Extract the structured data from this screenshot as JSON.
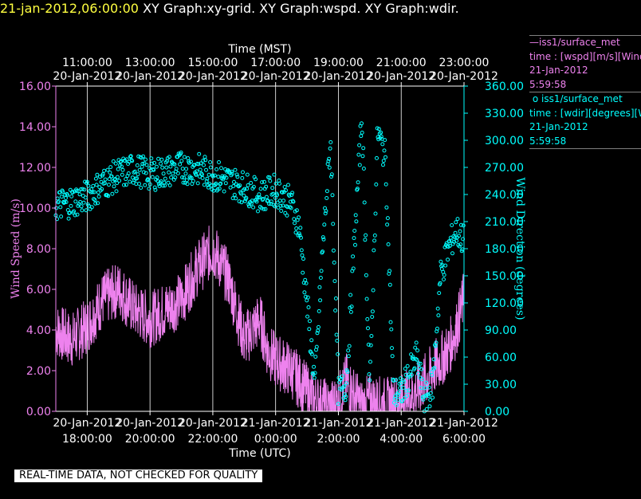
{
  "header": {
    "timestamp": "21-jan-2012,06:00:00",
    "graphs": [
      "XY Graph:xy-grid.",
      "XY Graph:wspd.",
      "XY Graph:wdir."
    ]
  },
  "legend": {
    "wspd": {
      "symbol": "—",
      "platform": "iss1/surface_met",
      "variable": "time : [wspd][m/s][Wind",
      "date": "21-Jan-2012",
      "time": "5:59:58",
      "color": "#ee82ee"
    },
    "wdir": {
      "symbol": "o",
      "platform": "iss1/surface_met",
      "variable": "time : [wdir][degrees][W",
      "date": "21-Jan-2012",
      "time": "5:59:58",
      "color": "#00ffff"
    }
  },
  "banner": "REAL-TIME DATA, NOT CHECKED FOR QUALITY",
  "chart_data": {
    "type": "line",
    "top_axis": {
      "label": "Time (MST)",
      "ticks": [
        {
          "time": "11:00:00",
          "date": "20-Jan-2012"
        },
        {
          "time": "13:00:00",
          "date": "20-Jan-2012"
        },
        {
          "time": "15:00:00",
          "date": "20-Jan-2012"
        },
        {
          "time": "17:00:00",
          "date": "20-Jan-2012"
        },
        {
          "time": "19:00:00",
          "date": "20-Jan-2012"
        },
        {
          "time": "21:00:00",
          "date": "20-Jan-2012"
        },
        {
          "time": "23:00:00",
          "date": "20-Jan-2012"
        }
      ]
    },
    "bottom_axis": {
      "label": "Time (UTC)",
      "range": [
        "20-Jan-2012 17:00",
        "21-Jan-2012 06:00"
      ],
      "ticks": [
        {
          "date": "20-Jan-2012",
          "time": "18:00:00",
          "utc": "2012-01-20 18:00"
        },
        {
          "date": "20-Jan-2012",
          "time": "20:00:00",
          "utc": "2012-01-20 20:00"
        },
        {
          "date": "20-Jan-2012",
          "time": "22:00:00",
          "utc": "2012-01-20 22:00"
        },
        {
          "date": "21-Jan-2012",
          "time": "0:00:00",
          "utc": "2012-01-21 00:00"
        },
        {
          "date": "21-Jan-2012",
          "time": "2:00:00",
          "utc": "2012-01-21 02:00"
        },
        {
          "date": "21-Jan-2012",
          "time": "4:00:00",
          "utc": "2012-01-21 04:00"
        },
        {
          "date": "21-Jan-2012",
          "time": "6:00:00",
          "utc": "2012-01-21 06:00"
        }
      ]
    },
    "y_left": {
      "label": "Wind Speed (m/s)",
      "range": [
        0,
        16
      ],
      "ticks": [
        "0.00",
        "2.00",
        "4.00",
        "6.00",
        "8.00",
        "10.00",
        "12.00",
        "14.00",
        "16.00"
      ]
    },
    "y_right": {
      "label": "Wind Direction (degrees)",
      "range": [
        0,
        360
      ],
      "ticks": [
        "0.00",
        "30.00",
        "60.00",
        "90.00",
        "120.00",
        "150.00",
        "180.00",
        "210.00",
        "240.00",
        "270.00",
        "300.00",
        "330.00",
        "360.00"
      ]
    },
    "grid": "vertical at bottom-axis ticks",
    "series": [
      {
        "key": "wspd",
        "style": "line",
        "color": "#ee82ee",
        "axis": "left",
        "x_utc": [
          "2012-01-20 17:00",
          "2012-01-20 17:30",
          "2012-01-20 18:00",
          "2012-01-20 18:30",
          "2012-01-20 19:00",
          "2012-01-20 19:30",
          "2012-01-20 20:00",
          "2012-01-20 20:30",
          "2012-01-20 21:00",
          "2012-01-20 21:30",
          "2012-01-20 22:00",
          "2012-01-20 22:30",
          "2012-01-20 23:00",
          "2012-01-20 23:15",
          "2012-01-20 23:30",
          "2012-01-20 23:45",
          "2012-01-21 00:00",
          "2012-01-21 00:30",
          "2012-01-21 01:00",
          "2012-01-21 01:15",
          "2012-01-21 01:30",
          "2012-01-21 01:45",
          "2012-01-21 02:00",
          "2012-01-21 02:15",
          "2012-01-21 02:30",
          "2012-01-21 02:45",
          "2012-01-21 03:00",
          "2012-01-21 03:30",
          "2012-01-21 04:00",
          "2012-01-21 04:30",
          "2012-01-21 05:00",
          "2012-01-21 05:15",
          "2012-01-21 05:30",
          "2012-01-21 05:45",
          "2012-01-21 05:59"
        ],
        "values": [
          4.0,
          3.5,
          4.2,
          5.5,
          6.0,
          5.0,
          4.5,
          5.0,
          5.5,
          7.0,
          8.0,
          6.5,
          3.5,
          4.0,
          4.5,
          3.0,
          2.5,
          2.0,
          1.0,
          0.5,
          0.3,
          0.2,
          0.5,
          1.5,
          0.8,
          0.2,
          0.5,
          0.3,
          0.5,
          1.0,
          2.0,
          2.5,
          3.0,
          4.0,
          5.5
        ],
        "noise": 1.4
      },
      {
        "key": "wdir",
        "style": "points",
        "color": "#00ffff",
        "axis": "right",
        "x_utc": [
          "2012-01-20 17:00",
          "2012-01-20 17:30",
          "2012-01-20 18:00",
          "2012-01-20 18:30",
          "2012-01-20 19:00",
          "2012-01-20 19:30",
          "2012-01-20 20:00",
          "2012-01-20 20:30",
          "2012-01-20 21:00",
          "2012-01-20 21:30",
          "2012-01-20 22:00",
          "2012-01-20 22:30",
          "2012-01-20 23:00",
          "2012-01-20 23:30",
          "2012-01-21 00:00",
          "2012-01-21 00:30",
          "2012-01-21 00:45",
          "2012-01-21 01:00",
          "2012-01-21 01:15",
          "2012-01-21 01:30",
          "2012-01-21 01:45",
          "2012-01-21 02:00",
          "2012-01-21 02:15",
          "2012-01-21 02:30",
          "2012-01-21 02:45",
          "2012-01-21 03:00",
          "2012-01-21 03:15",
          "2012-01-21 03:30",
          "2012-01-21 03:45",
          "2012-01-21 04:00",
          "2012-01-21 04:15",
          "2012-01-21 04:30",
          "2012-01-21 04:45",
          "2012-01-21 05:00",
          "2012-01-21 05:15",
          "2012-01-21 05:30",
          "2012-01-21 05:45",
          "2012-01-21 05:59"
        ],
        "values": [
          228,
          232,
          238,
          252,
          262,
          268,
          262,
          265,
          270,
          268,
          262,
          255,
          248,
          238,
          245,
          230,
          205,
          120,
          30,
          180,
          300,
          20,
          30,
          180,
          330,
          20,
          310,
          280,
          20,
          20,
          40,
          60,
          10,
          30,
          150,
          180,
          200,
          190
        ],
        "noise": 18
      }
    ]
  }
}
